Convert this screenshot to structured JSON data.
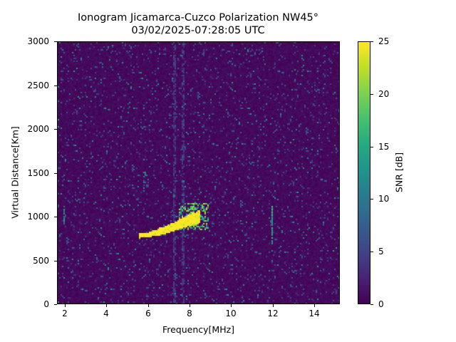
{
  "chart_data": {
    "type": "heatmap",
    "title": "Ionogram Jicamarca-Cuzco Polarization NW45°",
    "subtitle": "03/02/2025-07:28:05 UTC",
    "xlabel": "Frequency[MHz]",
    "ylabel": "Virtual Distance[Km]",
    "xlim": [
      1.62,
      15.23
    ],
    "ylim": [
      0,
      3000
    ],
    "xticks": [
      2,
      4,
      6,
      8,
      10,
      12,
      14
    ],
    "yticks": [
      0,
      500,
      1000,
      1500,
      2000,
      2500,
      3000
    ],
    "colorbar": {
      "label": "SNR [dB]",
      "range": [
        0,
        25
      ],
      "ticks": [
        0,
        5,
        10,
        15,
        20,
        25
      ],
      "colormap": "viridis"
    },
    "background_snr_db": 1,
    "features": [
      {
        "name": "main-echo-trace",
        "type": "trace",
        "snr_db": 25,
        "points": [
          [
            5.6,
            780
          ],
          [
            6.0,
            790
          ],
          [
            6.5,
            810
          ],
          [
            7.0,
            840
          ],
          [
            7.5,
            880
          ],
          [
            8.0,
            920
          ],
          [
            8.5,
            950
          ]
        ]
      },
      {
        "name": "spread-echo",
        "type": "spread",
        "snr_db": 20,
        "freq_range": [
          7.5,
          8.9
        ],
        "distance_range": [
          850,
          1150
        ]
      },
      {
        "name": "faint-echo",
        "type": "patch",
        "snr_db": 10,
        "freq_range": [
          5.8,
          6.0
        ],
        "distance_range": [
          1350,
          1500
        ]
      },
      {
        "name": "vertical-line-12mhz",
        "type": "vline",
        "snr_db": 15,
        "freq": 12.0,
        "distance_range": [
          680,
          1120
        ]
      },
      {
        "name": "vertical-line-2mhz",
        "type": "vline",
        "snr_db": 12,
        "freq": 1.98,
        "distance_range": [
          920,
          1120
        ]
      },
      {
        "name": "interference-stripe-7.2mhz",
        "type": "stripe",
        "snr_db": 4,
        "freq": 7.22
      },
      {
        "name": "interference-stripe-7.6mhz",
        "type": "stripe",
        "snr_db": 4,
        "freq": 7.62
      }
    ],
    "grid": false,
    "legend": "colorbar right"
  }
}
